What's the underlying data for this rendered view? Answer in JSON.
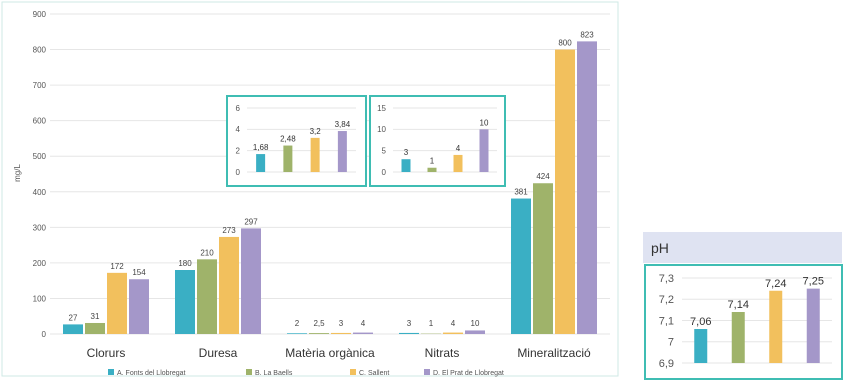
{
  "colors": {
    "series": [
      "#3aafc4",
      "#9fb36a",
      "#f2c05d",
      "#a497c9"
    ],
    "panel_border": "#3fbdb3",
    "ph_header_bg": "#dfe3f2",
    "grid": "#e6e6e6",
    "axis_text": "#555555"
  },
  "chart_data": [
    {
      "type": "bar",
      "title": "",
      "xlabel": "",
      "ylabel": "mg/L",
      "ylim": [
        0,
        900
      ],
      "yticks": [
        0,
        100,
        200,
        300,
        400,
        500,
        600,
        700,
        800,
        900
      ],
      "grid": true,
      "legend_position": "bottom",
      "categories": [
        "Clorurs",
        "Duresa",
        "Matèria orgànica",
        "Nitrats",
        "Mineralització"
      ],
      "series": [
        {
          "name": "A. Fonts del Llobregat",
          "values": [
            27,
            180,
            2,
            3,
            381
          ],
          "labels": [
            "27",
            "180",
            "2",
            "3",
            "381"
          ]
        },
        {
          "name": "B. La Baells",
          "values": [
            31,
            210,
            2.5,
            1,
            424
          ],
          "labels": [
            "31",
            "210",
            "2,5",
            "1",
            "424"
          ]
        },
        {
          "name": "C. Sallent",
          "values": [
            172,
            273,
            3,
            4,
            800
          ],
          "labels": [
            "172",
            "273",
            "3",
            "4",
            "800"
          ]
        },
        {
          "name": "D. El Prat de Llobregat",
          "values": [
            154,
            297,
            4,
            10,
            823
          ],
          "labels": [
            "154",
            "297",
            "4",
            "10",
            "823"
          ]
        }
      ]
    },
    {
      "type": "bar",
      "title": "",
      "inset_of": "Matèria orgànica",
      "ylim": [
        0,
        6
      ],
      "yticks": [
        0,
        2,
        4,
        6
      ],
      "values": [
        1.68,
        2.48,
        3.2,
        3.84
      ],
      "labels": [
        "1,68",
        "2,48",
        "3,2",
        "3,84"
      ]
    },
    {
      "type": "bar",
      "title": "",
      "inset_of": "Nitrats",
      "ylim": [
        0,
        15
      ],
      "yticks": [
        0,
        5,
        10,
        15
      ],
      "values": [
        3,
        1,
        4,
        10
      ],
      "labels": [
        "3",
        "1",
        "4",
        "10"
      ]
    },
    {
      "type": "bar",
      "title": "pH",
      "ylim": [
        6.9,
        7.3
      ],
      "yticks": [
        6.9,
        7,
        7.1,
        7.2,
        7.3
      ],
      "ytick_labels": [
        "6,9",
        "7",
        "7,1",
        "7,2",
        "7,3"
      ],
      "values": [
        7.06,
        7.14,
        7.24,
        7.25
      ],
      "labels": [
        "7,06",
        "7,14",
        "7,24",
        "7,25"
      ]
    }
  ]
}
